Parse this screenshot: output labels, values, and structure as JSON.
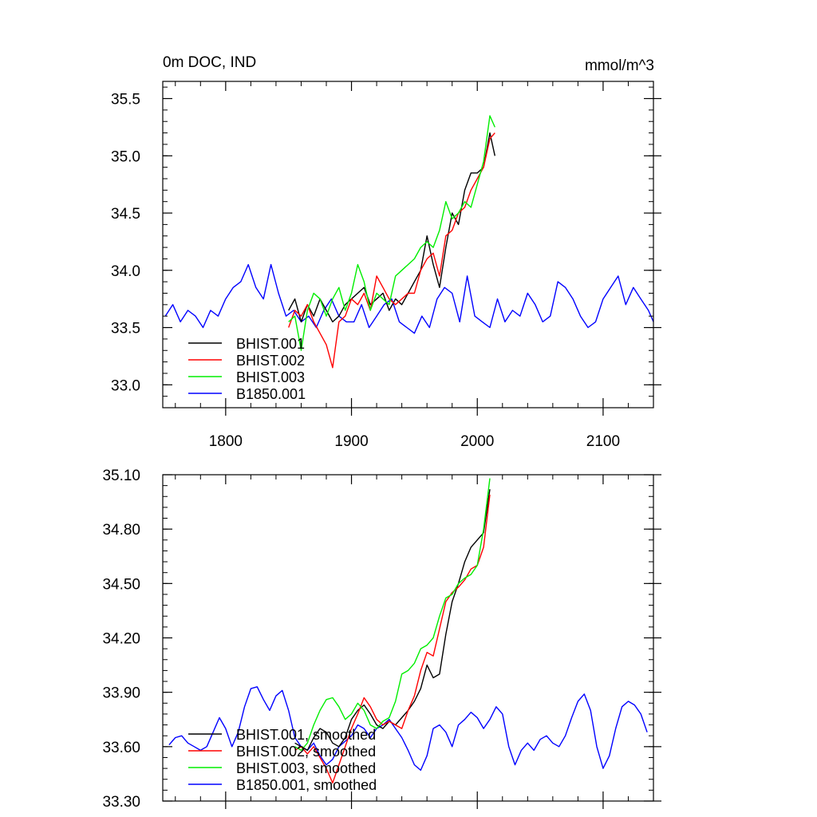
{
  "chart_data": [
    {
      "type": "line",
      "title": "0m DOC, IND",
      "title_right": "mmol/m^3",
      "xlim": [
        1750,
        2140
      ],
      "ylim": [
        32.8,
        35.65
      ],
      "xticks": [
        1800,
        1900,
        2000,
        2100
      ],
      "xtick_labels": [
        "1800",
        "1900",
        "2000",
        "2100"
      ],
      "yticks": [
        33.0,
        33.5,
        34.0,
        34.5,
        35.0,
        35.5
      ],
      "ytick_labels": [
        "33.0",
        "33.5",
        "34.0",
        "34.5",
        "35.0",
        "35.5"
      ],
      "legend_position": "bottom-left",
      "series": [
        {
          "name": "BHIST.001",
          "color": "#000000",
          "x": [
            1850,
            1855,
            1860,
            1865,
            1870,
            1875,
            1880,
            1885,
            1890,
            1895,
            1900,
            1905,
            1910,
            1915,
            1920,
            1925,
            1930,
            1935,
            1940,
            1945,
            1950,
            1955,
            1960,
            1965,
            1970,
            1975,
            1980,
            1985,
            1990,
            1995,
            2000,
            2005,
            2010,
            2014
          ],
          "y": [
            33.65,
            33.75,
            33.55,
            33.7,
            33.6,
            33.75,
            33.65,
            33.55,
            33.6,
            33.7,
            33.75,
            33.8,
            33.85,
            33.7,
            33.75,
            33.8,
            33.65,
            33.75,
            33.7,
            33.8,
            33.9,
            34.0,
            34.3,
            34.05,
            33.85,
            34.2,
            34.5,
            34.4,
            34.7,
            34.85,
            34.85,
            34.9,
            35.2,
            35.0
          ]
        },
        {
          "name": "BHIST.002",
          "color": "#ff0000",
          "x": [
            1850,
            1855,
            1860,
            1865,
            1870,
            1875,
            1880,
            1885,
            1890,
            1895,
            1900,
            1905,
            1910,
            1915,
            1920,
            1925,
            1930,
            1935,
            1940,
            1945,
            1950,
            1955,
            1960,
            1965,
            1970,
            1975,
            1980,
            1985,
            1990,
            1995,
            2000,
            2005,
            2010,
            2014
          ],
          "y": [
            33.5,
            33.65,
            33.6,
            33.7,
            33.55,
            33.45,
            33.35,
            33.15,
            33.55,
            33.6,
            33.75,
            33.7,
            33.8,
            33.65,
            33.95,
            33.85,
            33.75,
            33.7,
            33.75,
            33.8,
            33.8,
            34.0,
            34.1,
            34.15,
            33.95,
            34.3,
            34.35,
            34.5,
            34.55,
            34.7,
            34.8,
            34.9,
            35.15,
            35.2
          ]
        },
        {
          "name": "BHIST.003",
          "color": "#00ee00",
          "x": [
            1850,
            1855,
            1860,
            1865,
            1870,
            1875,
            1880,
            1885,
            1890,
            1895,
            1900,
            1905,
            1910,
            1915,
            1920,
            1925,
            1930,
            1935,
            1940,
            1945,
            1950,
            1955,
            1960,
            1965,
            1970,
            1975,
            1980,
            1985,
            1990,
            1995,
            2000,
            2005,
            2010,
            2014
          ],
          "y": [
            33.55,
            33.6,
            33.3,
            33.65,
            33.8,
            33.75,
            33.6,
            33.75,
            33.85,
            33.65,
            33.8,
            34.05,
            33.9,
            33.65,
            33.8,
            33.75,
            33.7,
            33.95,
            34.0,
            34.05,
            34.1,
            34.2,
            34.25,
            34.2,
            34.35,
            34.6,
            34.45,
            34.5,
            34.6,
            34.55,
            34.75,
            34.95,
            35.35,
            35.25
          ]
        },
        {
          "name": "B1850.001",
          "color": "#0000ff",
          "x": [
            1752,
            1758,
            1764,
            1770,
            1776,
            1782,
            1788,
            1794,
            1800,
            1806,
            1812,
            1818,
            1824,
            1830,
            1836,
            1842,
            1848,
            1854,
            1860,
            1866,
            1872,
            1878,
            1884,
            1890,
            1896,
            1902,
            1908,
            1914,
            1920,
            1926,
            1932,
            1938,
            1944,
            1950,
            1956,
            1962,
            1968,
            1974,
            1980,
            1986,
            1992,
            1998,
            2004,
            2010,
            2016,
            2022,
            2028,
            2034,
            2040,
            2046,
            2052,
            2058,
            2064,
            2070,
            2076,
            2082,
            2088,
            2094,
            2100,
            2106,
            2112,
            2118,
            2124,
            2130,
            2136,
            2140
          ],
          "y": [
            33.6,
            33.7,
            33.55,
            33.65,
            33.6,
            33.5,
            33.65,
            33.6,
            33.75,
            33.85,
            33.9,
            34.05,
            33.85,
            33.75,
            34.05,
            33.8,
            33.6,
            33.65,
            33.55,
            33.6,
            33.5,
            33.65,
            33.75,
            33.6,
            33.55,
            33.55,
            33.7,
            33.5,
            33.6,
            33.7,
            33.75,
            33.55,
            33.5,
            33.45,
            33.6,
            33.5,
            33.75,
            33.85,
            33.8,
            33.55,
            33.95,
            33.6,
            33.55,
            33.5,
            33.75,
            33.55,
            33.65,
            33.6,
            33.8,
            33.7,
            33.55,
            33.6,
            33.9,
            33.85,
            33.75,
            33.6,
            33.5,
            33.55,
            33.75,
            33.85,
            33.95,
            33.7,
            33.85,
            33.75,
            33.65,
            33.55
          ]
        }
      ]
    },
    {
      "type": "line",
      "title": "",
      "xlim": [
        1750,
        2140
      ],
      "ylim": [
        33.3,
        35.1
      ],
      "xticks": [
        1800,
        1900,
        2000,
        2100
      ],
      "yticks": [
        33.3,
        33.6,
        33.9,
        34.2,
        34.5,
        34.8,
        35.1
      ],
      "ytick_labels": [
        "33.30",
        "33.60",
        "33.90",
        "34.20",
        "34.50",
        "34.80",
        "35.10"
      ],
      "legend_position": "bottom-left",
      "series": [
        {
          "name": "BHIST.001, smoothed",
          "color": "#000000",
          "x": [
            1855,
            1860,
            1865,
            1870,
            1875,
            1880,
            1885,
            1890,
            1895,
            1900,
            1905,
            1910,
            1915,
            1920,
            1925,
            1930,
            1935,
            1940,
            1945,
            1950,
            1955,
            1960,
            1965,
            1970,
            1975,
            1980,
            1985,
            1990,
            1995,
            2000,
            2005,
            2010
          ],
          "y": [
            33.62,
            33.6,
            33.58,
            33.65,
            33.7,
            33.68,
            33.62,
            33.6,
            33.65,
            33.75,
            33.8,
            33.83,
            33.78,
            33.72,
            33.7,
            33.74,
            33.72,
            33.76,
            33.8,
            33.85,
            33.92,
            34.05,
            33.98,
            34.0,
            34.22,
            34.4,
            34.5,
            34.62,
            34.7,
            34.74,
            34.78,
            35.02
          ]
        },
        {
          "name": "BHIST.002, smoothed",
          "color": "#ff0000",
          "x": [
            1855,
            1860,
            1865,
            1870,
            1875,
            1880,
            1885,
            1890,
            1895,
            1900,
            1905,
            1910,
            1915,
            1920,
            1925,
            1930,
            1935,
            1940,
            1945,
            1950,
            1955,
            1960,
            1965,
            1970,
            1975,
            1980,
            1985,
            1990,
            1995,
            2000,
            2005,
            2010
          ],
          "y": [
            33.58,
            33.6,
            33.56,
            33.6,
            33.54,
            33.48,
            33.4,
            33.5,
            33.6,
            33.7,
            33.78,
            33.87,
            33.82,
            33.75,
            33.72,
            33.74,
            33.72,
            33.7,
            33.8,
            33.88,
            34.02,
            34.12,
            34.1,
            34.25,
            34.4,
            34.45,
            34.48,
            34.52,
            34.58,
            34.6,
            34.7,
            34.99
          ]
        },
        {
          "name": "BHIST.003, smoothed",
          "color": "#00ee00",
          "x": [
            1855,
            1860,
            1865,
            1870,
            1875,
            1880,
            1885,
            1890,
            1895,
            1900,
            1905,
            1910,
            1915,
            1920,
            1925,
            1930,
            1935,
            1940,
            1945,
            1950,
            1955,
            1960,
            1965,
            1970,
            1975,
            1980,
            1985,
            1990,
            1995,
            2000,
            2005,
            2010
          ],
          "y": [
            33.6,
            33.58,
            33.62,
            33.72,
            33.8,
            33.86,
            33.87,
            33.82,
            33.75,
            33.78,
            33.84,
            33.8,
            33.72,
            33.7,
            33.74,
            33.76,
            33.85,
            34.0,
            34.02,
            34.06,
            34.14,
            34.16,
            34.2,
            34.32,
            34.42,
            34.44,
            34.5,
            34.53,
            34.55,
            34.6,
            34.8,
            35.08
          ]
        },
        {
          "name": "B1850.001, smoothed",
          "color": "#0000ff",
          "x": [
            1755,
            1760,
            1765,
            1770,
            1775,
            1780,
            1785,
            1790,
            1795,
            1800,
            1805,
            1810,
            1815,
            1820,
            1825,
            1830,
            1835,
            1840,
            1845,
            1850,
            1855,
            1860,
            1865,
            1870,
            1875,
            1880,
            1885,
            1890,
            1895,
            1900,
            1905,
            1910,
            1915,
            1920,
            1925,
            1930,
            1935,
            1940,
            1945,
            1950,
            1955,
            1960,
            1965,
            1970,
            1975,
            1980,
            1985,
            1990,
            1995,
            2000,
            2005,
            2010,
            2015,
            2020,
            2025,
            2030,
            2035,
            2040,
            2045,
            2050,
            2055,
            2060,
            2065,
            2070,
            2075,
            2080,
            2085,
            2090,
            2095,
            2100,
            2105,
            2110,
            2115,
            2120,
            2125,
            2130,
            2135
          ],
          "y": [
            33.61,
            33.65,
            33.66,
            33.62,
            33.6,
            33.58,
            33.6,
            33.68,
            33.76,
            33.7,
            33.6,
            33.68,
            33.82,
            33.92,
            33.93,
            33.86,
            33.8,
            33.88,
            33.91,
            33.8,
            33.65,
            33.6,
            33.58,
            33.62,
            33.55,
            33.5,
            33.53,
            33.6,
            33.63,
            33.66,
            33.72,
            33.7,
            33.65,
            33.7,
            33.72,
            33.75,
            33.7,
            33.65,
            33.58,
            33.5,
            33.47,
            33.55,
            33.7,
            33.72,
            33.68,
            33.6,
            33.72,
            33.75,
            33.79,
            33.76,
            33.7,
            33.75,
            33.82,
            33.78,
            33.6,
            33.5,
            33.58,
            33.62,
            33.58,
            33.64,
            33.66,
            33.62,
            33.6,
            33.66,
            33.76,
            33.85,
            33.89,
            33.8,
            33.6,
            33.48,
            33.55,
            33.7,
            33.82,
            33.85,
            33.83,
            33.78,
            33.68
          ]
        }
      ]
    }
  ]
}
